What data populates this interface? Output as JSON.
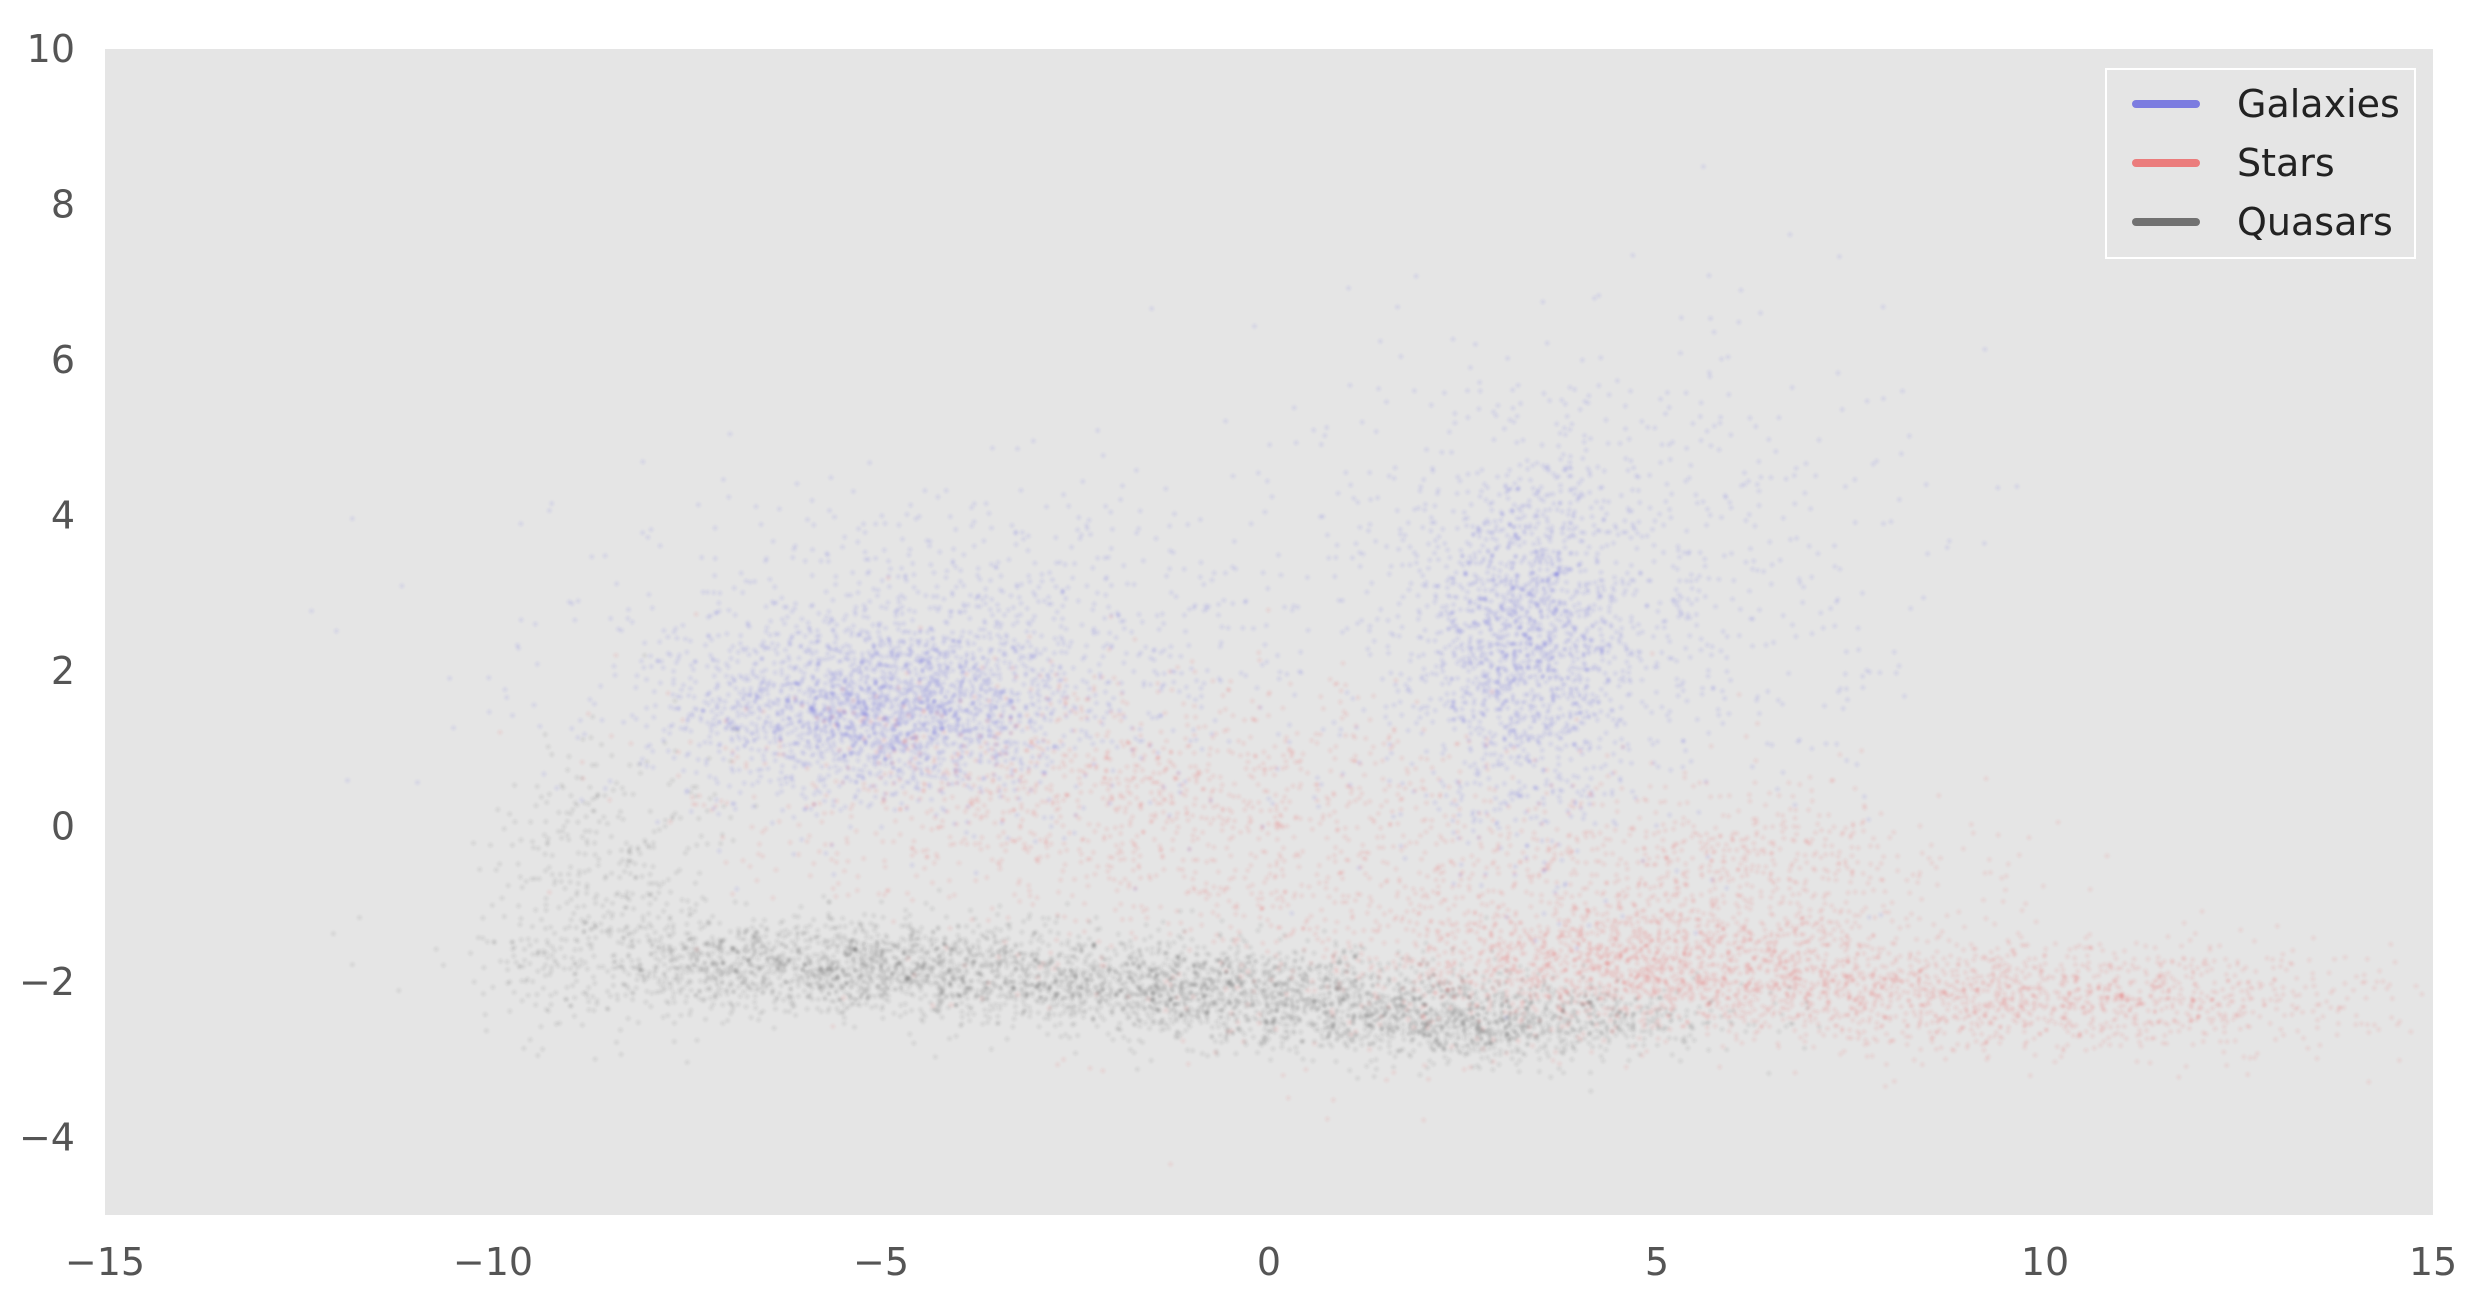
{
  "chart_data": {
    "type": "scatter",
    "title": "",
    "xlabel": "",
    "ylabel": "",
    "xlim": [
      -15,
      15
    ],
    "ylim": [
      -5,
      10
    ],
    "xticks": [
      -15,
      -10,
      -5,
      0,
      5,
      10,
      15
    ],
    "xtick_labels": [
      "−15",
      "−10",
      "−5",
      "0",
      "5",
      "10",
      "15"
    ],
    "yticks": [
      10,
      8,
      6,
      4,
      2,
      0,
      -2,
      -4
    ],
    "ytick_labels": [
      "10",
      "8",
      "6",
      "4",
      "2",
      "0",
      "−2",
      "−4"
    ],
    "grid": false,
    "background": "#e5e5e5",
    "legend_position": "top-right",
    "series": [
      {
        "name": "Galaxies",
        "color": "#4444dd",
        "clusters": [
          {
            "x": -5.0,
            "y": 1.5,
            "sx": 1.2,
            "sy": 0.55,
            "weight": 0.45
          },
          {
            "x": -4.0,
            "y": 2.3,
            "sx": 2.6,
            "sy": 1.0,
            "weight": 0.25
          },
          {
            "x": 3.3,
            "y": 2.3,
            "sx": 0.65,
            "sy": 1.1,
            "weight": 0.35
          },
          {
            "x": 4.3,
            "y": 3.2,
            "sx": 1.8,
            "sy": 1.6,
            "weight": 0.2
          }
        ]
      },
      {
        "name": "Stars",
        "color": "#ee4444",
        "clusters": [
          {
            "x": 5.0,
            "y": -1.8,
            "sx": 1.8,
            "sy": 0.4,
            "weight": 0.35
          },
          {
            "x": 10.0,
            "y": -2.2,
            "sx": 2.2,
            "sy": 0.35,
            "weight": 0.3
          },
          {
            "x": -2.0,
            "y": 0.5,
            "sx": 2.5,
            "sy": 0.7,
            "weight": 0.25
          },
          {
            "x": 2.0,
            "y": -1.0,
            "sx": 3.0,
            "sy": 0.9,
            "weight": 0.2
          },
          {
            "x": 6.0,
            "y": -0.5,
            "sx": 1.5,
            "sy": 0.5,
            "weight": 0.12
          }
        ]
      },
      {
        "name": "Quasars",
        "color": "#333333",
        "clusters": [
          {
            "x": -5.5,
            "y": -1.8,
            "sx": 1.8,
            "sy": 0.3,
            "weight": 0.4
          },
          {
            "x": -1.0,
            "y": -2.1,
            "sx": 1.8,
            "sy": 0.3,
            "weight": 0.35
          },
          {
            "x": 2.5,
            "y": -2.5,
            "sx": 1.6,
            "sy": 0.25,
            "weight": 0.3
          },
          {
            "x": -8.5,
            "y": -0.8,
            "sx": 0.8,
            "sy": 1.0,
            "weight": 0.1
          }
        ]
      }
    ]
  }
}
